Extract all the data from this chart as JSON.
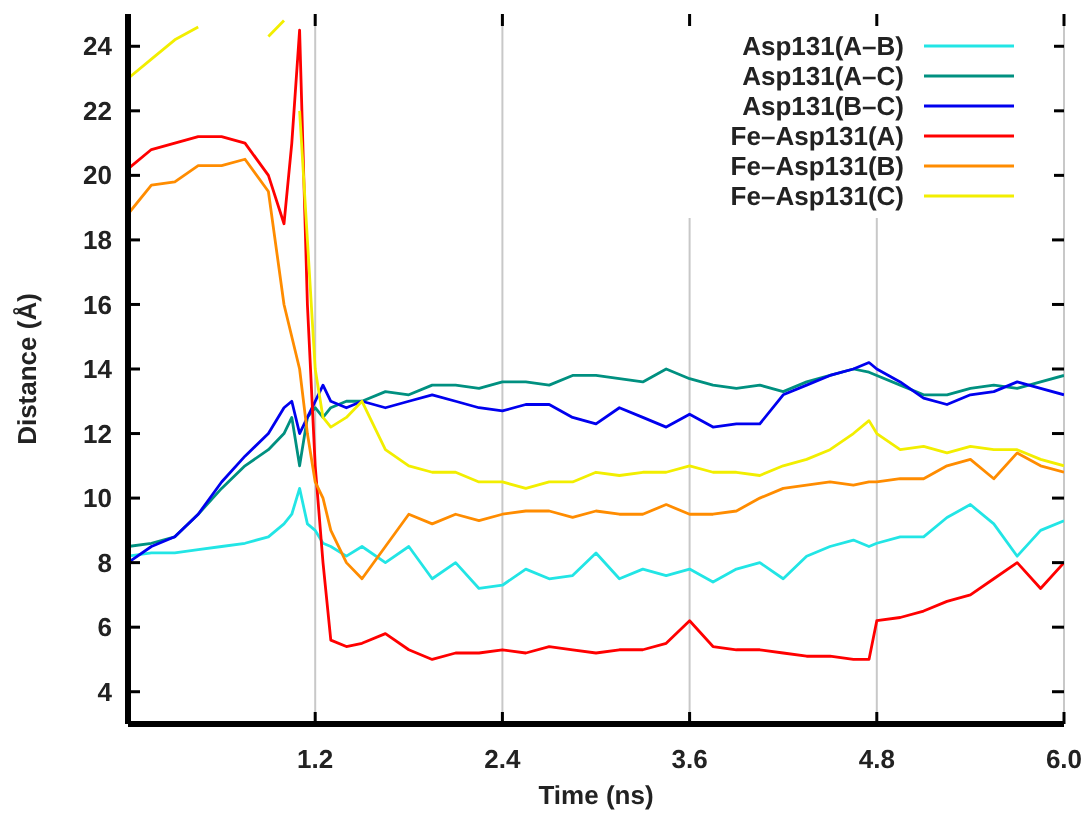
{
  "chart_data": {
    "type": "line",
    "xlabel": "Time (ns)",
    "ylabel": "Distance (Å)",
    "xlim": [
      0,
      6
    ],
    "ylim": [
      3,
      25
    ],
    "xticks": [
      1.2,
      2.4,
      3.6,
      4.8,
      {
        "value": 6,
        "label": "6.0"
      }
    ],
    "yticks": [
      4,
      6,
      8,
      10,
      12,
      14,
      16,
      18,
      20,
      22,
      24
    ],
    "grid": "x",
    "legend": "top right",
    "marker": "none",
    "line_style": "solid",
    "x": [
      0,
      0.15,
      0.3,
      0.45,
      0.6,
      0.75,
      0.9,
      1.0,
      1.05,
      1.1,
      1.15,
      1.2,
      1.25,
      1.3,
      1.4,
      1.5,
      1.65,
      1.8,
      1.95,
      2.1,
      2.25,
      2.4,
      2.55,
      2.7,
      2.85,
      3.0,
      3.15,
      3.3,
      3.45,
      3.6,
      3.75,
      3.9,
      4.05,
      4.2,
      4.35,
      4.5,
      4.65,
      4.75,
      4.8,
      4.95,
      5.1,
      5.25,
      5.4,
      5.55,
      5.7,
      5.85,
      6.0
    ],
    "series": [
      {
        "name": "Asp131(A–B)",
        "color": "#22e5e5",
        "values": [
          8.2,
          8.3,
          8.3,
          8.4,
          8.5,
          8.6,
          8.8,
          9.2,
          9.5,
          10.3,
          9.2,
          9.0,
          8.6,
          8.5,
          8.2,
          8.5,
          8.0,
          8.5,
          7.5,
          8.0,
          7.2,
          7.3,
          7.8,
          7.5,
          7.6,
          8.3,
          7.5,
          7.8,
          7.6,
          7.8,
          7.4,
          7.8,
          8.0,
          7.5,
          8.2,
          8.5,
          8.7,
          8.5,
          8.6,
          8.8,
          8.8,
          9.4,
          9.8,
          9.2,
          8.2,
          9.0,
          9.3
        ]
      },
      {
        "name": "Asp131(A–C)",
        "color": "#009080",
        "values": [
          8.5,
          8.6,
          8.8,
          9.5,
          10.3,
          11,
          11.5,
          12,
          12.5,
          11,
          12.5,
          12.8,
          12.5,
          12.8,
          13,
          13,
          13.3,
          13.2,
          13.5,
          13.5,
          13.4,
          13.6,
          13.6,
          13.5,
          13.8,
          13.8,
          13.7,
          13.6,
          14,
          13.7,
          13.5,
          13.4,
          13.5,
          13.3,
          13.6,
          13.8,
          14,
          13.9,
          13.8,
          13.5,
          13.2,
          13.2,
          13.4,
          13.5,
          13.4,
          13.6,
          13.8
        ]
      },
      {
        "name": "Asp131(B–C)",
        "color": "#0000ee",
        "values": [
          8,
          8.5,
          8.8,
          9.5,
          10.5,
          11.3,
          12,
          12.8,
          13,
          12,
          12.5,
          13,
          13.5,
          13,
          12.8,
          13,
          12.8,
          13,
          13.2,
          13,
          12.8,
          12.7,
          12.9,
          12.9,
          12.5,
          12.3,
          12.8,
          12.5,
          12.2,
          12.6,
          12.2,
          12.3,
          12.3,
          13.2,
          13.5,
          13.8,
          14,
          14.2,
          14,
          13.6,
          13.1,
          12.9,
          13.2,
          13.3,
          13.6,
          13.4,
          13.2
        ]
      },
      {
        "name": "Fe–Asp131(A)",
        "color": "#ff0000",
        "values": [
          20.2,
          20.8,
          21,
          21.2,
          21.2,
          21,
          20,
          18.5,
          21,
          24.5,
          16,
          11,
          8,
          5.6,
          5.4,
          5.5,
          5.8,
          5.3,
          5.0,
          5.2,
          5.2,
          5.3,
          5.2,
          5.4,
          5.3,
          5.2,
          5.3,
          5.3,
          5.5,
          6.2,
          5.4,
          5.3,
          5.3,
          5.2,
          5.1,
          5.1,
          5.0,
          5.0,
          6.2,
          6.3,
          6.5,
          6.8,
          7.0,
          7.5,
          8,
          7.2,
          8
        ]
      },
      {
        "name": "Fe–Asp131(B)",
        "color": "#ff8c00",
        "values": [
          18.8,
          19.7,
          19.8,
          20.3,
          20.3,
          20.5,
          19.5,
          16,
          15,
          14,
          12,
          10.5,
          10,
          9,
          8,
          7.5,
          8.5,
          9.5,
          9.2,
          9.5,
          9.3,
          9.5,
          9.6,
          9.6,
          9.4,
          9.6,
          9.5,
          9.5,
          9.8,
          9.5,
          9.5,
          9.6,
          10,
          10.3,
          10.4,
          10.5,
          10.4,
          10.5,
          10.5,
          10.6,
          10.6,
          11,
          11.2,
          10.6,
          11.4,
          11,
          10.8
        ]
      },
      {
        "name": "Fe–Asp131(C)",
        "color": "#f2ee00",
        "values": [
          23,
          23.6,
          24.2,
          24.6,
          null,
          null,
          24.3,
          24.8,
          null,
          22,
          18,
          14,
          12.5,
          12.2,
          12.5,
          13,
          11.5,
          11,
          10.8,
          10.8,
          10.5,
          10.5,
          10.3,
          10.5,
          10.5,
          10.8,
          10.7,
          10.8,
          10.8,
          11,
          10.8,
          10.8,
          10.7,
          11,
          11.2,
          11.5,
          12,
          12.4,
          12,
          11.5,
          11.6,
          11.4,
          11.6,
          11.5,
          11.5,
          11.2,
          11
        ]
      }
    ]
  }
}
